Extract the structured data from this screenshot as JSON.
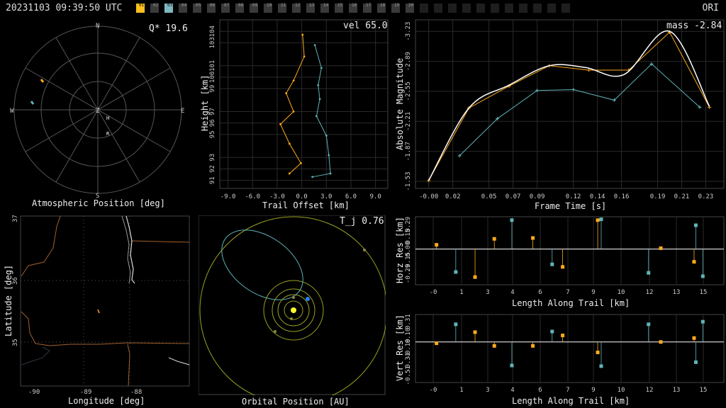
{
  "header": {
    "timestamp": "20231103 09:39:50 UTC",
    "station": "ORI"
  },
  "frames": {
    "labels": [
      "01",
      "02",
      "03",
      "04",
      "05",
      "06",
      "07",
      "08",
      "09",
      "10",
      "11",
      "12",
      "13",
      "14",
      "15",
      "16",
      "17",
      "18",
      "19",
      "20"
    ],
    "selected_yellow": "01",
    "selected_cyan": "03",
    "dim_count": 11
  },
  "colors": {
    "yellow": "#ffaa1a",
    "cyan": "#5fb3b8",
    "white": "#ffffff",
    "grid": "#2a2a2a",
    "green_ring": "#9aa020"
  },
  "sky": {
    "title": "Atmospheric Position [deg]",
    "quality": "Q* 19.6",
    "compass": {
      "n": "N",
      "s": "S",
      "e": "E",
      "w": "W",
      "zenith": "Z"
    },
    "markers": {
      "h": "H",
      "r": "R"
    }
  },
  "trail": {
    "title": "Trail Offset [km]",
    "ylabel": "Height [km]",
    "vel": "vel 65.0"
  },
  "mag": {
    "xlabel": "Frame Time [s]",
    "ylabel": "Absolute Magnitude",
    "mass": "mass -2.84"
  },
  "map": {
    "xlabel": "Longitude [deg]",
    "ylabel": "Latitude [deg]",
    "xticks": [
      "-90",
      "-89",
      "-88"
    ],
    "yticks": [
      "37",
      "36",
      "35"
    ]
  },
  "orbit": {
    "title": "Orbital Position [AU]",
    "tj": "T_j 0.76"
  },
  "horz": {
    "ylabel": "Horz Res [km]",
    "xlabel": "Length Along Trail [km]"
  },
  "vert": {
    "ylabel": "Vert Res [km]",
    "xlabel": "Length Along Trail [km]"
  },
  "chart_data": [
    {
      "type": "line",
      "name": "trail_offset",
      "xlabel": "Trail Offset [km]",
      "ylabel": "Height [km]",
      "xticks": [
        "-9.0",
        "-6.0",
        "-3.0",
        "0.0",
        "3.0",
        "6.0",
        "9.0"
      ],
      "xlim": [
        -10,
        10.5
      ],
      "yticks": [
        "91",
        "92",
        "93",
        "95",
        "96",
        "97",
        "99",
        "100",
        "101",
        "103",
        "104"
      ],
      "ylim": [
        90.3,
        105
      ],
      "series": [
        {
          "color": "yellow",
          "points": [
            [
              -1.5,
              91.6
            ],
            [
              -0.1,
              92.5
            ],
            [
              -1.5,
              94.2
            ],
            [
              -2.6,
              95.9
            ],
            [
              -1.0,
              97.0
            ],
            [
              -1.9,
              98.6
            ],
            [
              -1.0,
              99.7
            ],
            [
              0.3,
              101.8
            ],
            [
              0.1,
              103.7
            ]
          ]
        },
        {
          "color": "cyan",
          "points": [
            [
              1.3,
              91.3
            ],
            [
              3.5,
              91.6
            ],
            [
              3.3,
              93.2
            ],
            [
              3.0,
              94.9
            ],
            [
              1.8,
              96.6
            ],
            [
              2.2,
              98.1
            ],
            [
              2.0,
              99.3
            ],
            [
              2.4,
              100.8
            ],
            [
              1.6,
              102.8
            ]
          ]
        }
      ]
    },
    {
      "type": "line",
      "name": "light_curve",
      "xlabel": "Frame Time [s]",
      "ylabel": "Absolute Magnitude",
      "xticks": [
        "-0.00",
        "0.02",
        "0.05",
        "0.07",
        "0.09",
        "0.12",
        "0.14",
        "0.16",
        "0.19",
        "0.21",
        "0.23"
      ],
      "xlim": [
        -0.011,
        0.245
      ],
      "yticks": [
        "-1.53",
        "-1.87",
        "-2.21",
        "-2.55",
        "-2.89",
        "-3.23"
      ],
      "ylim": [
        -1.45,
        -3.36
      ],
      "series": [
        {
          "color": "yellow",
          "points": [
            [
              0.0,
              -1.54
            ],
            [
              0.0333,
              -2.36
            ],
            [
              0.0667,
              -2.61
            ],
            [
              0.1,
              -2.84
            ],
            [
              0.133,
              -2.79
            ],
            [
              0.166,
              -2.79
            ],
            [
              0.2,
              -3.22
            ],
            [
              0.233,
              -2.37
            ]
          ]
        },
        {
          "color": "cyan",
          "points": [
            [
              0.0256,
              -1.82
            ],
            [
              0.057,
              -2.24
            ],
            [
              0.09,
              -2.56
            ],
            [
              0.12,
              -2.57
            ],
            [
              0.154,
              -2.45
            ],
            [
              0.185,
              -2.86
            ],
            [
              0.225,
              -2.37
            ]
          ]
        },
        {
          "color": "white",
          "smooth": true,
          "points": [
            [
              0.0,
              -1.54
            ],
            [
              0.0333,
              -2.36
            ],
            [
              0.0667,
              -2.62
            ],
            [
              0.1,
              -2.84
            ],
            [
              0.13,
              -2.82
            ],
            [
              0.162,
              -2.74
            ],
            [
              0.2,
              -3.23
            ],
            [
              0.233,
              -2.38
            ]
          ]
        }
      ]
    },
    {
      "type": "scatter",
      "name": "horz_res",
      "xlabel": "Length Along Trail [km]",
      "ylabel": "Horz Res [km]",
      "xticks": [
        "-0",
        "1",
        "3",
        "4",
        "6",
        "7",
        "9",
        "10",
        "12",
        "13",
        "15"
      ],
      "xlim": [
        -1.2,
        16.4
      ],
      "yticks": [
        "0.29",
        "0.15",
        "0.00",
        "-0.15",
        "-0.29"
      ],
      "ylim": [
        -0.42,
        0.38
      ],
      "series": [
        {
          "color": "yellow",
          "points": [
            [
              0.0,
              0.05
            ],
            [
              2.2,
              -0.33
            ],
            [
              3.3,
              0.12
            ],
            [
              5.5,
              0.13
            ],
            [
              7.2,
              -0.21
            ],
            [
              9.2,
              0.34
            ],
            [
              12.8,
              0.01
            ],
            [
              14.7,
              -0.15
            ]
          ]
        },
        {
          "color": "cyan",
          "points": [
            [
              1.1,
              -0.27
            ],
            [
              4.3,
              0.34
            ],
            [
              6.6,
              -0.18
            ],
            [
              9.4,
              0.35
            ],
            [
              12.1,
              -0.28
            ],
            [
              14.8,
              0.28
            ],
            [
              15.2,
              -0.32
            ]
          ]
        }
      ]
    },
    {
      "type": "scatter",
      "name": "vert_res",
      "xlabel": "Length Along Trail [km]",
      "ylabel": "Vert Res [km]",
      "xticks": [
        "-0",
        "1",
        "3",
        "4",
        "6",
        "7",
        "9",
        "10",
        "12",
        "13",
        "15"
      ],
      "xlim": [
        -1.2,
        16.4
      ],
      "yticks": [
        "0.31",
        "0.10",
        "-0.10",
        "-0.31",
        "-0.51"
      ],
      "ylim": [
        -0.62,
        0.42
      ],
      "series": [
        {
          "color": "yellow",
          "points": [
            [
              0.0,
              -0.02
            ],
            [
              2.2,
              0.15
            ],
            [
              3.3,
              -0.06
            ],
            [
              5.5,
              -0.06
            ],
            [
              7.2,
              0.1
            ],
            [
              9.2,
              -0.16
            ],
            [
              12.8,
              0.0
            ],
            [
              14.7,
              0.06
            ]
          ]
        },
        {
          "color": "cyan",
          "points": [
            [
              1.1,
              0.27
            ],
            [
              4.3,
              -0.36
            ],
            [
              6.6,
              0.16
            ],
            [
              9.4,
              -0.37
            ],
            [
              12.1,
              0.27
            ],
            [
              14.8,
              -0.31
            ],
            [
              15.2,
              0.31
            ]
          ]
        }
      ]
    }
  ]
}
